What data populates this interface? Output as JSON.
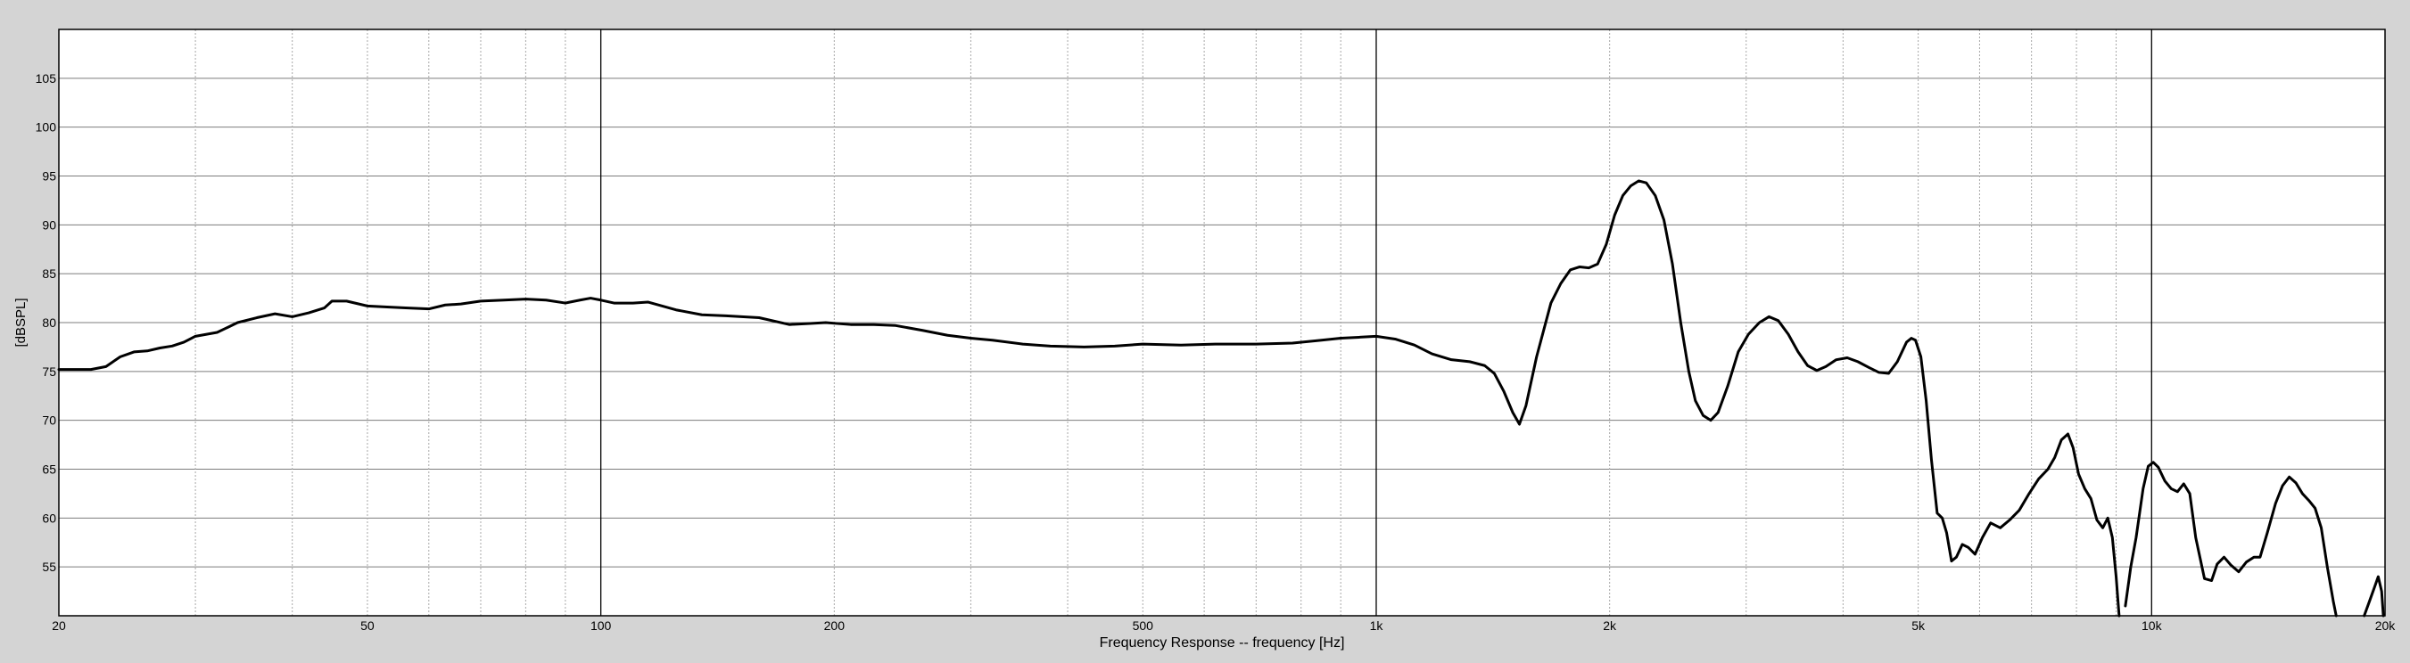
{
  "colors": {
    "background": "#d4d4d4",
    "plot_background": "#ffffff",
    "line": "#000000",
    "minor_grid": "#a8a8a8",
    "major_grid": "#000000",
    "hgrid": "#7c7c7c"
  },
  "chart_data": {
    "type": "line",
    "title": "",
    "xlabel": "Frequency Response -- frequency [Hz]",
    "ylabel": "[dBSPL]",
    "x_scale": "log",
    "xlim": [
      20,
      20000
    ],
    "ylim": [
      50,
      110
    ],
    "grid": true,
    "x_ticks": [
      {
        "value": 20,
        "label": "20"
      },
      {
        "value": 50,
        "label": "50"
      },
      {
        "value": 100,
        "label": "100"
      },
      {
        "value": 200,
        "label": "200"
      },
      {
        "value": 500,
        "label": "500"
      },
      {
        "value": 1000,
        "label": "1k"
      },
      {
        "value": 2000,
        "label": "2k"
      },
      {
        "value": 5000,
        "label": "5k"
      },
      {
        "value": 10000,
        "label": "10k"
      },
      {
        "value": 20000,
        "label": "20k"
      }
    ],
    "y_ticks": [
      {
        "value": 55,
        "label": "55"
      },
      {
        "value": 60,
        "label": "60"
      },
      {
        "value": 65,
        "label": "65"
      },
      {
        "value": 70,
        "label": "70"
      },
      {
        "value": 75,
        "label": "75"
      },
      {
        "value": 80,
        "label": "80"
      },
      {
        "value": 85,
        "label": "85"
      },
      {
        "value": 90,
        "label": "90"
      },
      {
        "value": 95,
        "label": "95"
      },
      {
        "value": 100,
        "label": "100"
      },
      {
        "value": 105,
        "label": "105"
      }
    ],
    "minor_x_gridlines": [
      30,
      40,
      60,
      70,
      80,
      90,
      300,
      400,
      600,
      700,
      800,
      900,
      3000,
      4000,
      6000,
      7000,
      8000,
      9000
    ],
    "major_x_gridlines": [
      100,
      1000,
      10000
    ],
    "series": [
      {
        "name": "",
        "segments": [
          [
            [
              20,
              75.2
            ],
            [
              22,
              75.2
            ],
            [
              23,
              75.5
            ],
            [
              24,
              76.5
            ],
            [
              25,
              77.0
            ],
            [
              26,
              77.1
            ],
            [
              27,
              77.4
            ],
            [
              28,
              77.6
            ],
            [
              29,
              78.0
            ],
            [
              30,
              78.6
            ],
            [
              32,
              79.0
            ],
            [
              33,
              79.5
            ],
            [
              34,
              80.0
            ],
            [
              36,
              80.5
            ],
            [
              38,
              80.9
            ],
            [
              40,
              80.6
            ],
            [
              42,
              81.0
            ],
            [
              44,
              81.5
            ],
            [
              45,
              82.2
            ],
            [
              47,
              82.2
            ],
            [
              50,
              81.7
            ],
            [
              53,
              81.6
            ],
            [
              56,
              81.5
            ],
            [
              60,
              81.4
            ],
            [
              63,
              81.8
            ],
            [
              66,
              81.9
            ],
            [
              70,
              82.2
            ],
            [
              75,
              82.3
            ],
            [
              80,
              82.4
            ],
            [
              85,
              82.3
            ],
            [
              90,
              82.0
            ],
            [
              94,
              82.3
            ],
            [
              97,
              82.5
            ],
            [
              100,
              82.3
            ],
            [
              104,
              82.0
            ],
            [
              110,
              82.0
            ],
            [
              115,
              82.1
            ],
            [
              125,
              81.3
            ],
            [
              135,
              80.8
            ],
            [
              145,
              80.7
            ],
            [
              160,
              80.5
            ],
            [
              175,
              79.8
            ],
            [
              185,
              79.9
            ],
            [
              195,
              80.0
            ],
            [
              210,
              79.8
            ],
            [
              225,
              79.8
            ],
            [
              240,
              79.7
            ],
            [
              260,
              79.2
            ],
            [
              280,
              78.7
            ],
            [
              300,
              78.4
            ],
            [
              320,
              78.2
            ],
            [
              350,
              77.8
            ],
            [
              380,
              77.6
            ],
            [
              420,
              77.5
            ],
            [
              460,
              77.6
            ],
            [
              500,
              77.8
            ],
            [
              560,
              77.7
            ],
            [
              620,
              77.8
            ],
            [
              700,
              77.8
            ],
            [
              780,
              77.9
            ],
            [
              850,
              78.2
            ],
            [
              900,
              78.4
            ],
            [
              950,
              78.5
            ],
            [
              1000,
              78.6
            ],
            [
              1060,
              78.3
            ],
            [
              1120,
              77.7
            ],
            [
              1180,
              76.8
            ],
            [
              1250,
              76.2
            ],
            [
              1320,
              76.0
            ],
            [
              1380,
              75.6
            ],
            [
              1420,
              74.8
            ],
            [
              1460,
              73.0
            ],
            [
              1500,
              70.8
            ],
            [
              1530,
              69.6
            ],
            [
              1560,
              71.5
            ],
            [
              1610,
              76.5
            ],
            [
              1680,
              82.0
            ],
            [
              1730,
              84.0
            ],
            [
              1780,
              85.4
            ],
            [
              1830,
              85.7
            ],
            [
              1880,
              85.6
            ],
            [
              1930,
              86.0
            ],
            [
              1980,
              88.0
            ],
            [
              2030,
              91.0
            ],
            [
              2080,
              93.0
            ],
            [
              2130,
              94.0
            ],
            [
              2180,
              94.5
            ],
            [
              2230,
              94.3
            ],
            [
              2290,
              93.0
            ],
            [
              2350,
              90.5
            ],
            [
              2410,
              86.0
            ],
            [
              2470,
              80.0
            ],
            [
              2530,
              75.0
            ],
            [
              2580,
              72.0
            ],
            [
              2640,
              70.5
            ],
            [
              2700,
              70.0
            ],
            [
              2760,
              70.8
            ],
            [
              2840,
              73.5
            ],
            [
              2930,
              77.0
            ],
            [
              3020,
              78.8
            ],
            [
              3120,
              80.0
            ],
            [
              3210,
              80.6
            ],
            [
              3300,
              80.2
            ],
            [
              3400,
              78.8
            ],
            [
              3500,
              77.0
            ],
            [
              3600,
              75.6
            ],
            [
              3700,
              75.1
            ],
            [
              3800,
              75.5
            ],
            [
              3920,
              76.2
            ],
            [
              4050,
              76.4
            ],
            [
              4180,
              76.0
            ],
            [
              4320,
              75.4
            ],
            [
              4450,
              74.9
            ],
            [
              4580,
              74.8
            ],
            [
              4700,
              76.0
            ],
            [
              4830,
              78.0
            ],
            [
              4900,
              78.4
            ],
            [
              4960,
              78.2
            ],
            [
              5040,
              76.5
            ],
            [
              5120,
              72.0
            ],
            [
              5200,
              66.0
            ],
            [
              5290,
              60.5
            ],
            [
              5370,
              60.0
            ],
            [
              5440,
              58.5
            ],
            [
              5520,
              55.6
            ],
            [
              5600,
              56.0
            ],
            [
              5700,
              57.3
            ],
            [
              5800,
              57.0
            ],
            [
              5920,
              56.3
            ],
            [
              6050,
              58.0
            ],
            [
              6200,
              59.5
            ],
            [
              6380,
              59.0
            ],
            [
              6560,
              59.8
            ],
            [
              6750,
              60.8
            ],
            [
              6950,
              62.5
            ],
            [
              7150,
              64.0
            ],
            [
              7350,
              65.0
            ],
            [
              7500,
              66.2
            ],
            [
              7650,
              68.0
            ],
            [
              7800,
              68.6
            ],
            [
              7920,
              67.2
            ],
            [
              8050,
              64.5
            ],
            [
              8200,
              63.0
            ],
            [
              8350,
              62.0
            ],
            [
              8500,
              59.8
            ],
            [
              8650,
              59.0
            ],
            [
              8780,
              60.0
            ],
            [
              8900,
              58.0
            ],
            [
              9000,
              54.0
            ],
            [
              9080,
              50.0
            ]
          ],
          [
            [
              9250,
              51.0
            ],
            [
              9400,
              55.0
            ],
            [
              9550,
              58.0
            ],
            [
              9750,
              63.0
            ],
            [
              9900,
              65.3
            ],
            [
              10050,
              65.7
            ],
            [
              10200,
              65.2
            ],
            [
              10400,
              63.8
            ],
            [
              10600,
              63.0
            ],
            [
              10800,
              62.7
            ],
            [
              11000,
              63.5
            ],
            [
              11200,
              62.5
            ],
            [
              11400,
              58.0
            ],
            [
              11700,
              53.8
            ],
            [
              11950,
              53.6
            ],
            [
              12150,
              55.3
            ],
            [
              12400,
              56.0
            ],
            [
              12650,
              55.2
            ],
            [
              12950,
              54.5
            ],
            [
              13250,
              55.5
            ],
            [
              13550,
              56.0
            ],
            [
              13800,
              56.0
            ],
            [
              14100,
              58.5
            ],
            [
              14450,
              61.5
            ],
            [
              14750,
              63.3
            ],
            [
              15050,
              64.2
            ],
            [
              15350,
              63.6
            ],
            [
              15650,
              62.5
            ],
            [
              15950,
              61.8
            ],
            [
              16250,
              61.0
            ],
            [
              16550,
              59.0
            ],
            [
              16850,
              55.0
            ],
            [
              17150,
              51.5
            ],
            [
              17300,
              50.0
            ]
          ],
          [
            [
              18800,
              50.0
            ],
            [
              19100,
              51.5
            ],
            [
              19400,
              53.0
            ],
            [
              19600,
              54.0
            ],
            [
              19800,
              52.5
            ],
            [
              19900,
              50.0
            ]
          ]
        ]
      }
    ]
  }
}
